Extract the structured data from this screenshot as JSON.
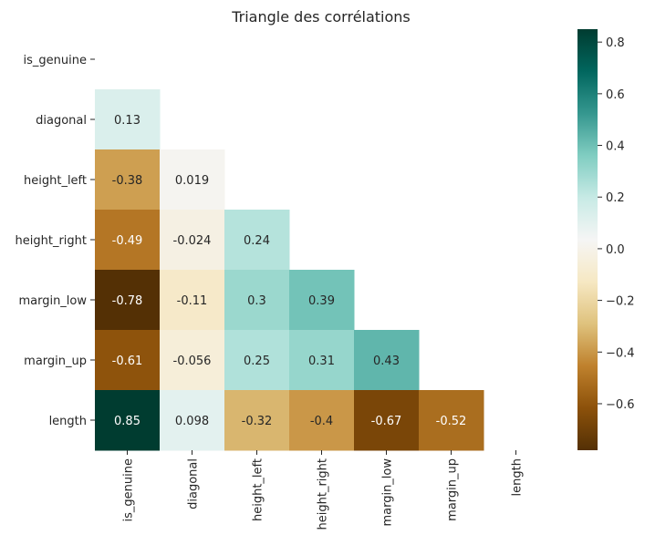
{
  "chart_data": {
    "type": "heatmap",
    "title": "Triangle des corrélations",
    "xlabel": "",
    "ylabel": "",
    "variables": [
      "is_genuine",
      "diagonal",
      "height_left",
      "height_right",
      "margin_low",
      "margin_up",
      "length"
    ],
    "mask": "upper-triangle-including-diagonal",
    "cells": [
      {
        "row": 1,
        "col": 0,
        "value": 0.13,
        "label": "0.13"
      },
      {
        "row": 2,
        "col": 0,
        "value": -0.38,
        "label": "-0.38"
      },
      {
        "row": 2,
        "col": 1,
        "value": 0.019,
        "label": "0.019"
      },
      {
        "row": 3,
        "col": 0,
        "value": -0.49,
        "label": "-0.49"
      },
      {
        "row": 3,
        "col": 1,
        "value": -0.024,
        "label": "-0.024"
      },
      {
        "row": 3,
        "col": 2,
        "value": 0.24,
        "label": "0.24"
      },
      {
        "row": 4,
        "col": 0,
        "value": -0.78,
        "label": "-0.78"
      },
      {
        "row": 4,
        "col": 1,
        "value": -0.11,
        "label": "-0.11"
      },
      {
        "row": 4,
        "col": 2,
        "value": 0.3,
        "label": "0.3"
      },
      {
        "row": 4,
        "col": 3,
        "value": 0.39,
        "label": "0.39"
      },
      {
        "row": 5,
        "col": 0,
        "value": -0.61,
        "label": "-0.61"
      },
      {
        "row": 5,
        "col": 1,
        "value": -0.056,
        "label": "-0.056"
      },
      {
        "row": 5,
        "col": 2,
        "value": 0.25,
        "label": "0.25"
      },
      {
        "row": 5,
        "col": 3,
        "value": 0.31,
        "label": "0.31"
      },
      {
        "row": 5,
        "col": 4,
        "value": 0.43,
        "label": "0.43"
      },
      {
        "row": 6,
        "col": 0,
        "value": 0.85,
        "label": "0.85"
      },
      {
        "row": 6,
        "col": 1,
        "value": 0.098,
        "label": "0.098"
      },
      {
        "row": 6,
        "col": 2,
        "value": -0.32,
        "label": "-0.32"
      },
      {
        "row": 6,
        "col": 3,
        "value": -0.4,
        "label": "-0.4"
      },
      {
        "row": 6,
        "col": 4,
        "value": -0.67,
        "label": "-0.67"
      },
      {
        "row": 6,
        "col": 5,
        "value": -0.52,
        "label": "-0.52"
      }
    ],
    "colorbar": {
      "colormap": "BrBG",
      "vmin": -0.78,
      "vmax": 0.85,
      "ticks": [
        -0.6,
        -0.4,
        -0.2,
        0.0,
        0.2,
        0.4,
        0.6,
        0.8
      ],
      "tick_labels": [
        "−0.6",
        "−0.4",
        "−0.2",
        "0.0",
        "0.2",
        "0.4",
        "0.6",
        "0.8"
      ]
    },
    "grid": false
  }
}
